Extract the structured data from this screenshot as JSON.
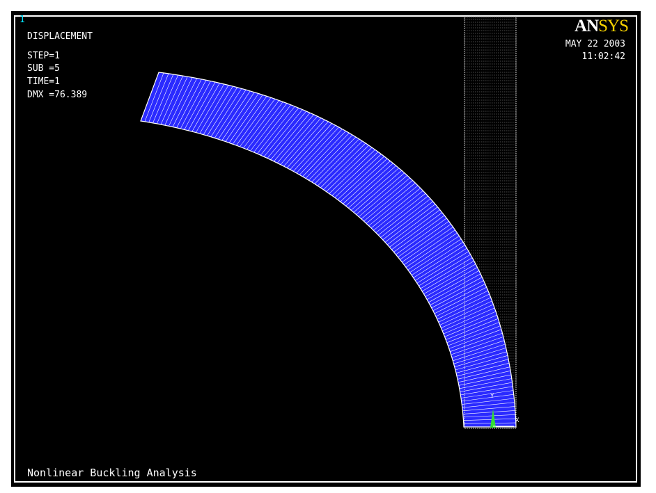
{
  "window_number": "1",
  "plot": {
    "title": "DISPLACEMENT",
    "step": "STEP=1",
    "sub": "SUB =5",
    "time": "TIME=1",
    "dmx": "DMX =76.389"
  },
  "stamp": {
    "date": "MAY 22 2003",
    "time": "11:02:42"
  },
  "logo": {
    "part1": "AN",
    "part2": "SYS"
  },
  "caption": "Nonlinear Buckling Analysis",
  "triad": {
    "y_label": "Y",
    "x_label": "X"
  },
  "colors": {
    "background": "#000000",
    "deformed_mesh": "#2a2aff",
    "mesh_lines": "#ffffff",
    "window_number": "#00e5ff",
    "logo_accent": "#f5d000",
    "triad_marker": "#33dd33"
  }
}
